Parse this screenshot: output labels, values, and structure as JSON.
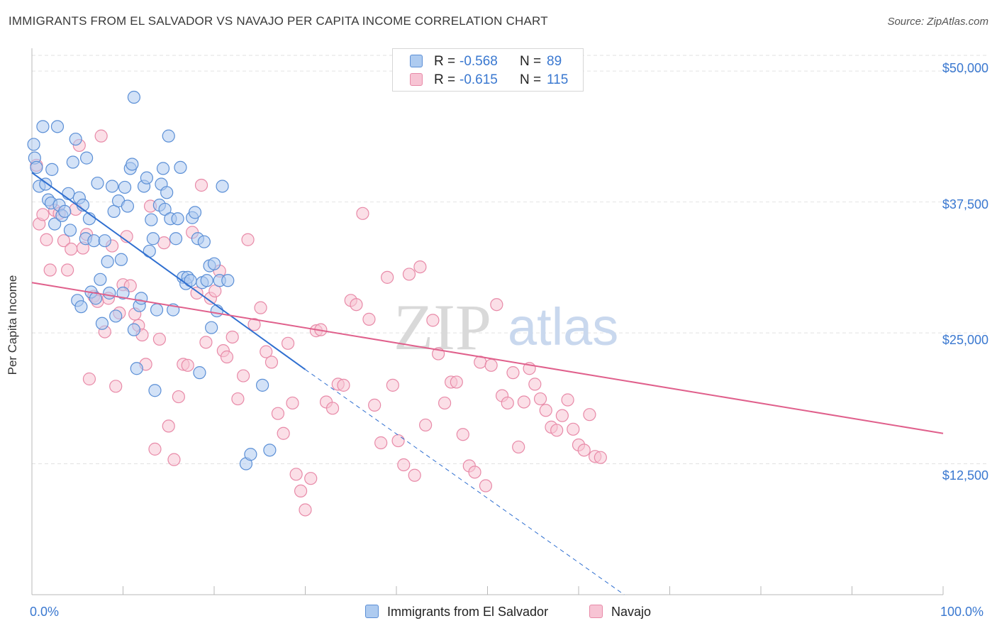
{
  "title": "IMMIGRANTS FROM EL SALVADOR VS NAVAJO PER CAPITA INCOME CORRELATION CHART",
  "source": "Source: ZipAtlas.com",
  "watermark": {
    "zip": "ZIP",
    "atlas": "atlas"
  },
  "legend_top": {
    "rows": [
      {
        "r_label": "R =",
        "r_value": "-0.568",
        "n_label": "N =",
        "n_value": "89"
      },
      {
        "r_label": "R =",
        "r_value": "-0.615",
        "n_label": "N =",
        "n_value": "115"
      }
    ]
  },
  "legend_bottom": {
    "items": [
      "Immigrants from El Salvador",
      "Navajo"
    ]
  },
  "colors": {
    "blue_fill": "#aecbf0",
    "blue_stroke": "#5b8fd6",
    "blue_line": "#2f6fd0",
    "pink_fill": "#f7c4d4",
    "pink_stroke": "#e88aa8",
    "pink_line": "#e0608c",
    "grid": "#e2e2e2",
    "axis_text": "#3a78d0"
  },
  "chart_data": {
    "type": "scatter",
    "title": "IMMIGRANTS FROM EL SALVADOR VS NAVAJO PER CAPITA INCOME CORRELATION CHART",
    "xlabel": "",
    "ylabel": "Per Capita Income",
    "x_tick_labels": [
      "0.0%",
      "100.0%"
    ],
    "y_tick_labels": [
      "$12,500",
      "$25,000",
      "$37,500",
      "$50,000"
    ],
    "y_ticks": [
      12500,
      25000,
      37500,
      50000
    ],
    "xlim": [
      0,
      100
    ],
    "ylim": [
      0,
      51500
    ],
    "grid": "horizontal dashed",
    "legend_position": "bottom",
    "series": [
      {
        "name": "Immigrants from El Salvador",
        "color": "#5b8fd6",
        "R": -0.568,
        "N": 89,
        "trend": {
          "x0": 0,
          "y0": 40300,
          "x1": 30,
          "y1": 21500,
          "dashed_to_x": 65,
          "dashed_to_y": 0
        },
        "points": [
          [
            0.2,
            43000
          ],
          [
            0.3,
            41700
          ],
          [
            0.5,
            40800
          ],
          [
            0.8,
            39000
          ],
          [
            1.2,
            44700
          ],
          [
            1.5,
            39200
          ],
          [
            1.8,
            37700
          ],
          [
            2.1,
            37400
          ],
          [
            2.2,
            40600
          ],
          [
            2.5,
            35400
          ],
          [
            2.8,
            44700
          ],
          [
            3.0,
            37200
          ],
          [
            3.3,
            36200
          ],
          [
            3.6,
            36600
          ],
          [
            4.0,
            38300
          ],
          [
            4.2,
            34800
          ],
          [
            4.5,
            41300
          ],
          [
            4.8,
            43500
          ],
          [
            5.0,
            28100
          ],
          [
            5.2,
            37900
          ],
          [
            5.4,
            27500
          ],
          [
            5.6,
            37200
          ],
          [
            5.9,
            34000
          ],
          [
            6.0,
            41700
          ],
          [
            6.3,
            35900
          ],
          [
            6.5,
            28900
          ],
          [
            6.8,
            33800
          ],
          [
            7.0,
            28300
          ],
          [
            7.2,
            39300
          ],
          [
            7.5,
            30100
          ],
          [
            7.7,
            25900
          ],
          [
            8.0,
            33800
          ],
          [
            8.3,
            31800
          ],
          [
            8.5,
            28800
          ],
          [
            8.8,
            39000
          ],
          [
            9.0,
            36600
          ],
          [
            9.2,
            26600
          ],
          [
            9.5,
            37600
          ],
          [
            9.8,
            32000
          ],
          [
            10.0,
            28800
          ],
          [
            10.2,
            38900
          ],
          [
            10.5,
            37100
          ],
          [
            10.8,
            40700
          ],
          [
            11.0,
            41100
          ],
          [
            11.2,
            25300
          ],
          [
            11.5,
            21600
          ],
          [
            11.8,
            27600
          ],
          [
            12.0,
            28300
          ],
          [
            12.3,
            39000
          ],
          [
            12.6,
            39800
          ],
          [
            12.9,
            32800
          ],
          [
            13.1,
            35800
          ],
          [
            13.3,
            34000
          ],
          [
            13.5,
            19500
          ],
          [
            13.7,
            27200
          ],
          [
            14.0,
            37200
          ],
          [
            14.2,
            39200
          ],
          [
            14.4,
            40700
          ],
          [
            14.6,
            36800
          ],
          [
            14.8,
            38400
          ],
          [
            15.0,
            43800
          ],
          [
            15.2,
            35900
          ],
          [
            15.5,
            27200
          ],
          [
            15.8,
            34000
          ],
          [
            16.0,
            35900
          ],
          [
            16.3,
            40800
          ],
          [
            16.6,
            30300
          ],
          [
            16.9,
            29700
          ],
          [
            17.1,
            30300
          ],
          [
            17.4,
            30000
          ],
          [
            17.6,
            36000
          ],
          [
            17.9,
            36500
          ],
          [
            18.2,
            34000
          ],
          [
            18.4,
            21200
          ],
          [
            18.7,
            29800
          ],
          [
            18.9,
            33700
          ],
          [
            19.2,
            30000
          ],
          [
            19.5,
            31400
          ],
          [
            19.7,
            25500
          ],
          [
            20.0,
            31600
          ],
          [
            20.3,
            27100
          ],
          [
            20.6,
            30000
          ],
          [
            20.9,
            39000
          ],
          [
            11.2,
            47500
          ],
          [
            23.5,
            12500
          ],
          [
            24.0,
            13400
          ],
          [
            25.3,
            20000
          ],
          [
            26.1,
            13800
          ],
          [
            21.5,
            30000
          ]
        ]
      },
      {
        "name": "Navajo",
        "color": "#e88aa8",
        "R": -0.615,
        "N": 115,
        "trend": {
          "x0": 0,
          "y0": 29800,
          "x1": 100,
          "y1": 15400
        },
        "points": [
          [
            0.5,
            41000
          ],
          [
            0.8,
            35400
          ],
          [
            1.2,
            36300
          ],
          [
            1.6,
            33900
          ],
          [
            2.0,
            31000
          ],
          [
            2.5,
            36700
          ],
          [
            3.0,
            36400
          ],
          [
            3.5,
            33800
          ],
          [
            3.9,
            31000
          ],
          [
            4.3,
            33000
          ],
          [
            4.8,
            36800
          ],
          [
            5.2,
            42900
          ],
          [
            5.6,
            33100
          ],
          [
            6.0,
            34400
          ],
          [
            6.3,
            20600
          ],
          [
            6.8,
            28500
          ],
          [
            7.2,
            28000
          ],
          [
            7.6,
            43800
          ],
          [
            8.0,
            25100
          ],
          [
            8.4,
            28300
          ],
          [
            8.8,
            33300
          ],
          [
            9.2,
            19900
          ],
          [
            9.6,
            26900
          ],
          [
            10.0,
            29600
          ],
          [
            10.4,
            34200
          ],
          [
            10.8,
            29500
          ],
          [
            11.3,
            26800
          ],
          [
            11.7,
            25700
          ],
          [
            12.1,
            24800
          ],
          [
            12.5,
            22000
          ],
          [
            13.0,
            37100
          ],
          [
            13.5,
            13900
          ],
          [
            14.0,
            24400
          ],
          [
            14.5,
            33600
          ],
          [
            15.0,
            16100
          ],
          [
            15.6,
            12900
          ],
          [
            16.1,
            18900
          ],
          [
            16.6,
            22000
          ],
          [
            17.1,
            21900
          ],
          [
            17.6,
            34600
          ],
          [
            18.1,
            28800
          ],
          [
            18.6,
            39100
          ],
          [
            19.1,
            24100
          ],
          [
            19.6,
            28300
          ],
          [
            20.1,
            29000
          ],
          [
            20.6,
            30900
          ],
          [
            21.0,
            23300
          ],
          [
            21.4,
            22700
          ],
          [
            22.0,
            24600
          ],
          [
            22.6,
            18700
          ],
          [
            23.2,
            20900
          ],
          [
            23.7,
            33900
          ],
          [
            24.4,
            25800
          ],
          [
            25.1,
            27400
          ],
          [
            25.7,
            23200
          ],
          [
            26.3,
            22200
          ],
          [
            27.0,
            17300
          ],
          [
            27.6,
            15400
          ],
          [
            28.1,
            24000
          ],
          [
            28.6,
            18300
          ],
          [
            29.0,
            11500
          ],
          [
            29.5,
            9900
          ],
          [
            30.0,
            8100
          ],
          [
            30.6,
            11100
          ],
          [
            31.2,
            25200
          ],
          [
            31.7,
            25300
          ],
          [
            32.3,
            18400
          ],
          [
            33.0,
            17800
          ],
          [
            33.6,
            20100
          ],
          [
            34.2,
            20000
          ],
          [
            35.0,
            28100
          ],
          [
            35.6,
            27700
          ],
          [
            36.3,
            36400
          ],
          [
            37.0,
            26300
          ],
          [
            37.6,
            18100
          ],
          [
            38.3,
            14500
          ],
          [
            39.0,
            30300
          ],
          [
            39.6,
            20000
          ],
          [
            40.2,
            14700
          ],
          [
            40.8,
            12400
          ],
          [
            41.4,
            30600
          ],
          [
            42.0,
            11400
          ],
          [
            42.6,
            31300
          ],
          [
            43.2,
            16200
          ],
          [
            44.0,
            26200
          ],
          [
            44.6,
            23000
          ],
          [
            45.3,
            18300
          ],
          [
            46.0,
            20300
          ],
          [
            46.6,
            20300
          ],
          [
            47.3,
            15300
          ],
          [
            48.0,
            12300
          ],
          [
            48.6,
            11700
          ],
          [
            49.2,
            22200
          ],
          [
            49.8,
            10400
          ],
          [
            50.4,
            21900
          ],
          [
            51.0,
            27700
          ],
          [
            51.6,
            19000
          ],
          [
            52.2,
            18300
          ],
          [
            52.8,
            21200
          ],
          [
            53.4,
            14100
          ],
          [
            54.0,
            18400
          ],
          [
            54.6,
            21600
          ],
          [
            55.2,
            20100
          ],
          [
            55.8,
            18700
          ],
          [
            56.4,
            17600
          ],
          [
            57.0,
            16000
          ],
          [
            57.6,
            15700
          ],
          [
            58.2,
            17100
          ],
          [
            58.8,
            18600
          ],
          [
            59.4,
            15800
          ],
          [
            60.0,
            14300
          ],
          [
            60.6,
            13800
          ],
          [
            61.2,
            17200
          ],
          [
            61.8,
            13200
          ],
          [
            62.4,
            13100
          ]
        ]
      }
    ]
  }
}
